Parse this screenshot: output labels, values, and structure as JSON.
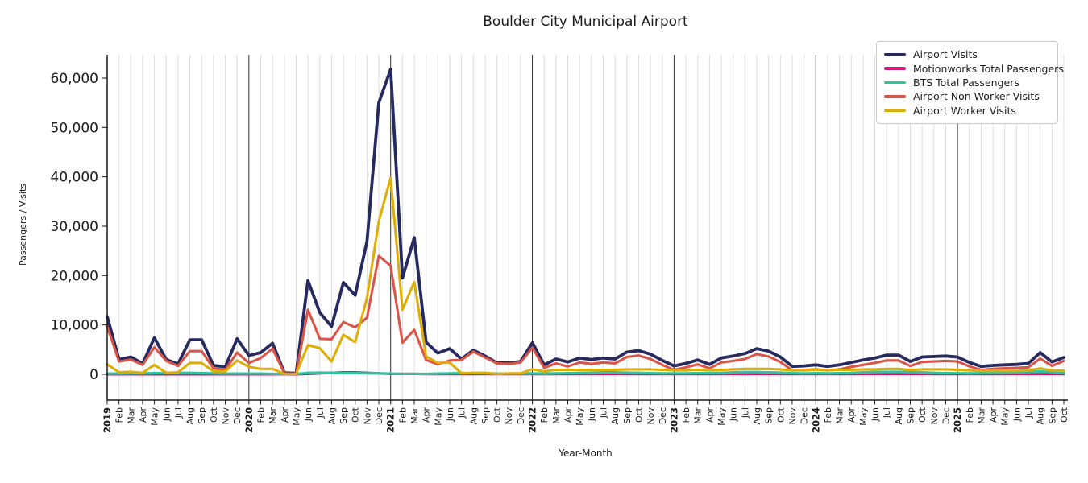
{
  "chart_data": {
    "type": "line",
    "title": "Boulder City Municipal Airport",
    "xlabel": "Year-Month",
    "ylabel": "Passengers / Visits",
    "legend_position": "upper right",
    "grid": "vertical gridline per month; dark vertical line at each year start; no horizontal gridlines",
    "ylim": [
      -5200,
      64800
    ],
    "y_ticks": [
      0,
      10000,
      20000,
      30000,
      40000,
      50000,
      60000
    ],
    "y_tick_labels": [
      "0",
      "10,000",
      "20,000",
      "30,000",
      "40,000",
      "50,000",
      "60,000"
    ],
    "x_tick_labels": [
      "2019",
      "Feb",
      "Mar",
      "Apr",
      "May",
      "Jun",
      "Jul",
      "Aug",
      "Sep",
      "Oct",
      "Nov",
      "Dec",
      "2020",
      "Feb",
      "Mar",
      "Apr",
      "May",
      "Jun",
      "Jul",
      "Aug",
      "Sep",
      "Oct",
      "Nov",
      "Dec",
      "2021",
      "Feb",
      "Mar",
      "Apr",
      "May",
      "Jun",
      "Jul",
      "Aug",
      "Sep",
      "Oct",
      "Nov",
      "Dec",
      "2022",
      "Feb",
      "Mar",
      "Apr",
      "May",
      "Jun",
      "Jul",
      "Aug",
      "Sep",
      "Oct",
      "Nov",
      "Dec",
      "2023",
      "Feb",
      "Mar",
      "Apr",
      "May",
      "Jun",
      "Jul",
      "Aug",
      "Sep",
      "Oct",
      "Nov",
      "Dec",
      "2024",
      "Feb",
      "Mar",
      "Apr",
      "May",
      "Jun",
      "Jul",
      "Aug",
      "Sep",
      "Oct",
      "Nov",
      "Dec",
      "2025",
      "Feb",
      "Mar",
      "Apr",
      "May",
      "Jun",
      "Jul",
      "Aug",
      "Sep",
      "Oct"
    ],
    "series": [
      {
        "name": "Airport Visits",
        "color": "#262a5e",
        "values": [
          11700,
          3000,
          3500,
          2200,
          7400,
          3000,
          2100,
          7000,
          7000,
          1800,
          1500,
          7200,
          3800,
          4400,
          6300,
          300,
          200,
          19000,
          12500,
          9700,
          18600,
          16000,
          27000,
          55000,
          61800,
          19500,
          27700,
          6500,
          4300,
          5200,
          3100,
          4900,
          3700,
          2300,
          2300,
          2600,
          6400,
          1900,
          3100,
          2500,
          3300,
          3000,
          3300,
          3100,
          4500,
          4800,
          4100,
          2800,
          1700,
          2200,
          2900,
          2000,
          3300,
          3700,
          4200,
          5200,
          4700,
          3500,
          1600,
          1700,
          1900,
          1600,
          1900,
          2400,
          2900,
          3300,
          3900,
          3900,
          2600,
          3500,
          3600,
          3700,
          3500,
          2400,
          1600,
          1800,
          1900,
          2000,
          2200,
          4400,
          2500,
          3400
        ]
      },
      {
        "name": "Motionworks Total Passengers",
        "color": "#cf1a7c",
        "values": [
          0,
          0,
          0,
          0,
          0,
          0,
          0,
          0,
          0,
          0,
          0,
          0,
          0,
          0,
          0,
          0,
          0,
          100,
          200,
          300,
          400,
          400,
          300,
          200,
          100,
          100,
          100,
          50,
          50,
          50,
          50,
          50,
          50,
          50,
          50,
          50,
          50,
          50,
          50,
          50,
          50,
          50,
          50,
          50,
          50,
          50,
          50,
          50,
          50,
          50,
          50,
          50,
          50,
          50,
          50,
          50,
          50,
          50,
          50,
          50,
          50,
          50,
          50,
          50,
          50,
          50,
          50,
          50,
          50,
          50,
          50,
          50,
          50,
          50,
          50,
          50,
          50,
          50,
          50,
          50,
          50,
          50
        ]
      },
      {
        "name": "BTS Total Passengers",
        "color": "#2fc3a2",
        "values": [
          150,
          150,
          200,
          200,
          250,
          250,
          300,
          300,
          250,
          200,
          150,
          150,
          150,
          150,
          100,
          50,
          100,
          300,
          350,
          300,
          250,
          250,
          200,
          200,
          150,
          100,
          100,
          100,
          150,
          200,
          250,
          250,
          200,
          150,
          150,
          150,
          200,
          150,
          200,
          250,
          300,
          350,
          400,
          400,
          350,
          300,
          250,
          200,
          200,
          200,
          250,
          250,
          300,
          400,
          450,
          450,
          400,
          350,
          250,
          200,
          250,
          200,
          250,
          300,
          400,
          450,
          500,
          500,
          450,
          400,
          300,
          250,
          250,
          200,
          250,
          300,
          350,
          400,
          450,
          600,
          450,
          300
        ]
      },
      {
        "name": "Airport Non-Worker Visits",
        "color": "#d95549",
        "values": [
          9700,
          2600,
          3000,
          1900,
          5500,
          2700,
          1700,
          4700,
          4700,
          1200,
          900,
          4400,
          2300,
          3300,
          5200,
          200,
          100,
          13100,
          7200,
          7100,
          10600,
          9500,
          11500,
          24000,
          22000,
          6400,
          9000,
          2900,
          2000,
          2800,
          2900,
          4600,
          3400,
          2200,
          2100,
          2400,
          5400,
          1300,
          2200,
          1600,
          2400,
          2100,
          2400,
          2200,
          3500,
          3800,
          3100,
          1900,
          900,
          1400,
          2000,
          1200,
          2400,
          2700,
          3100,
          4100,
          3600,
          2500,
          800,
          900,
          1000,
          800,
          1000,
          1500,
          1900,
          2300,
          2800,
          2800,
          1700,
          2500,
          2600,
          2700,
          2600,
          1600,
          900,
          1100,
          1200,
          1300,
          1400,
          3200,
          1700,
          2700
        ]
      },
      {
        "name": "Airport Worker Visits",
        "color": "#ddae09",
        "values": [
          2000,
          400,
          500,
          300,
          1900,
          300,
          400,
          2300,
          2300,
          600,
          600,
          2800,
          1500,
          1100,
          1100,
          100,
          100,
          5900,
          5300,
          2600,
          8000,
          6500,
          15500,
          31000,
          39800,
          13100,
          18700,
          3600,
          2300,
          2400,
          200,
          300,
          300,
          100,
          200,
          200,
          1000,
          600,
          900,
          900,
          900,
          900,
          900,
          900,
          1000,
          1000,
          1000,
          900,
          800,
          800,
          900,
          800,
          900,
          1000,
          1100,
          1100,
          1100,
          1000,
          800,
          800,
          900,
          800,
          900,
          900,
          1000,
          1000,
          1100,
          1100,
          900,
          1000,
          1000,
          1000,
          900,
          800,
          700,
          700,
          700,
          700,
          800,
          1200,
          800,
          700
        ]
      }
    ]
  }
}
